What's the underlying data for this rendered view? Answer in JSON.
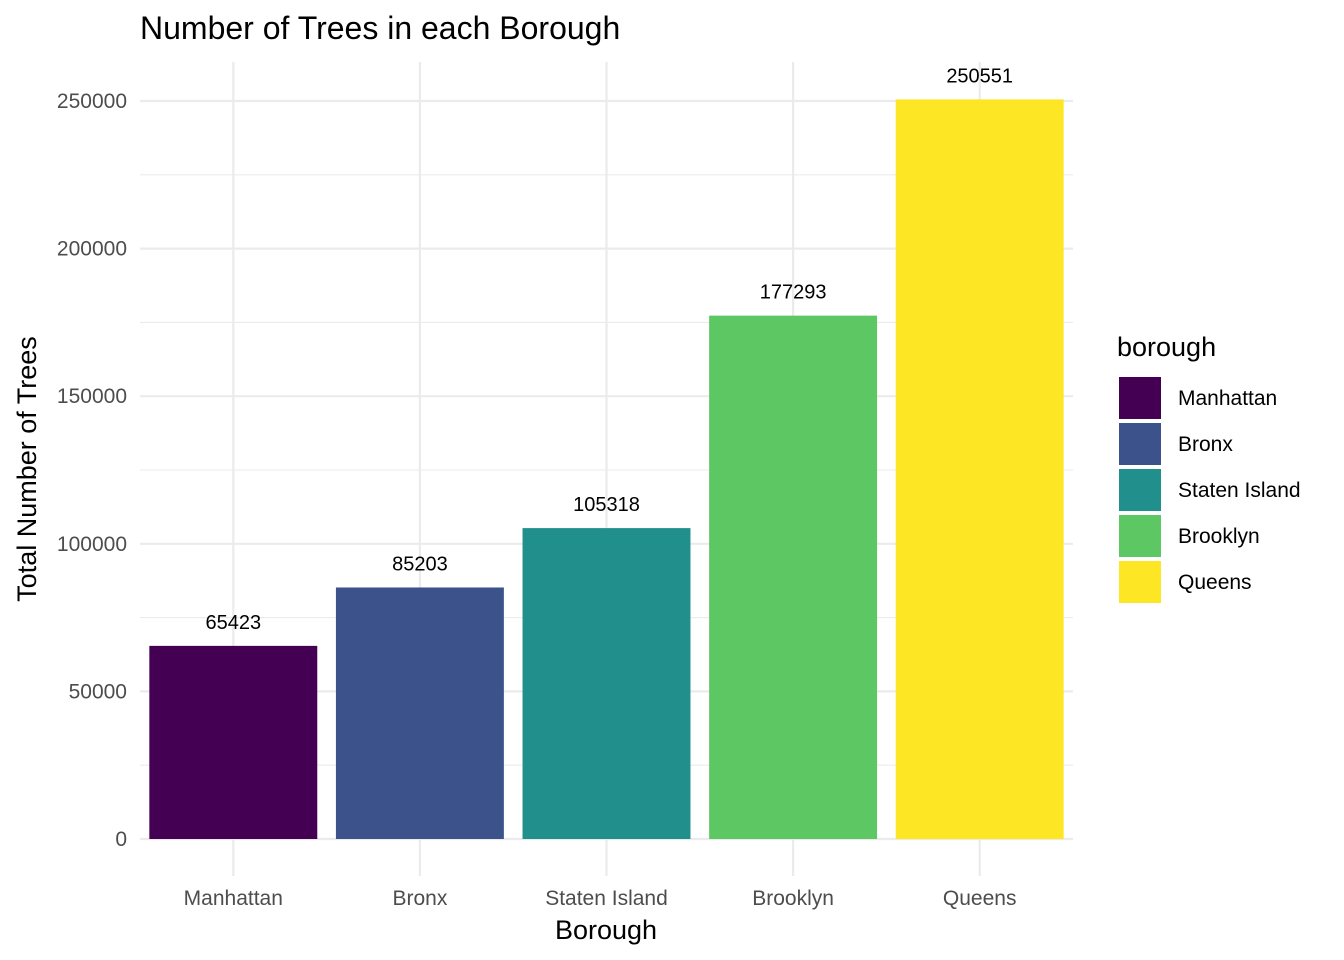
{
  "chart_data": {
    "type": "bar",
    "title": "Number of Trees in each Borough",
    "xlabel": "Borough",
    "ylabel": "Total Number of Trees",
    "categories": [
      "Manhattan",
      "Bronx",
      "Staten Island",
      "Brooklyn",
      "Queens"
    ],
    "values": [
      65423,
      85203,
      105318,
      177293,
      250551
    ],
    "data_labels": [
      "65423",
      "85203",
      "105318",
      "177293",
      "250551"
    ],
    "colors": [
      "#440154",
      "#3B528B",
      "#21908C",
      "#5DC863",
      "#FDE725"
    ],
    "ylim": [
      0,
      262000
    ],
    "y_ticks": [
      0,
      50000,
      100000,
      150000,
      200000,
      250000
    ],
    "y_tick_labels": [
      "0",
      "50000",
      "100000",
      "150000",
      "200000",
      "250000"
    ],
    "grid": true,
    "legend": {
      "title": "borough",
      "position": "right",
      "entries": [
        "Manhattan",
        "Bronx",
        "Staten Island",
        "Brooklyn",
        "Queens"
      ]
    }
  }
}
